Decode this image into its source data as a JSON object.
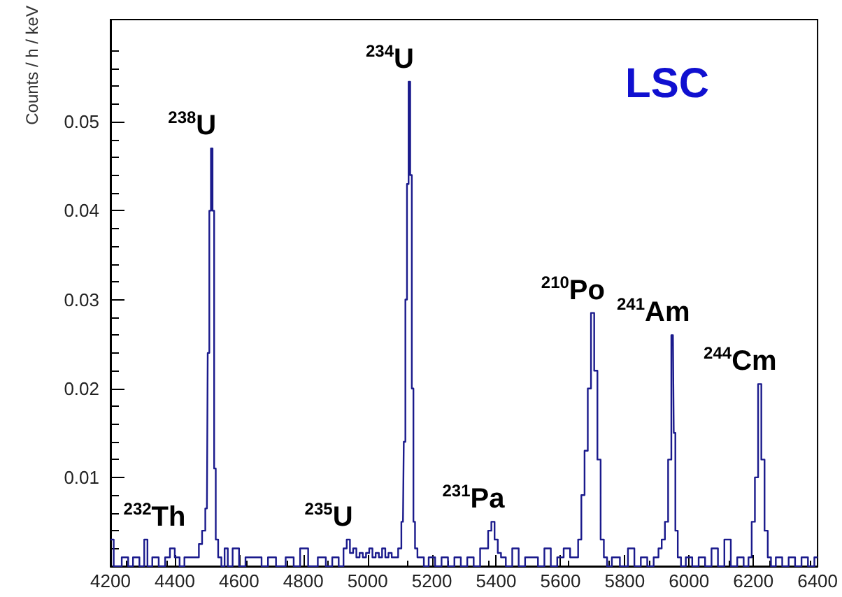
{
  "chart_data": {
    "type": "step",
    "ylabel": "Counts / h / keV",
    "x": [
      4200,
      4220,
      4250,
      4260,
      4280,
      4300,
      4310,
      4320,
      4340,
      4360,
      4380,
      4390,
      4410,
      4420,
      4440,
      4460,
      4470,
      4480,
      4490,
      4500,
      4505,
      4510,
      4515,
      4520,
      4525,
      4530,
      4540,
      4550,
      4560,
      4570,
      4590,
      4610,
      4630,
      4660,
      4680,
      4700,
      4730,
      4760,
      4780,
      4800,
      4830,
      4860,
      4880,
      4900,
      4920,
      4930,
      4940,
      4950,
      4960,
      4970,
      4980,
      4990,
      5000,
      5010,
      5020,
      5030,
      5040,
      5050,
      5060,
      5070,
      5080,
      5090,
      5100,
      5110,
      5115,
      5120,
      5125,
      5130,
      5135,
      5140,
      5145,
      5150,
      5160,
      5170,
      5180,
      5200,
      5220,
      5240,
      5260,
      5280,
      5300,
      5320,
      5340,
      5360,
      5370,
      5380,
      5390,
      5400,
      5410,
      5420,
      5440,
      5460,
      5480,
      5500,
      5520,
      5540,
      5560,
      5580,
      5600,
      5620,
      5640,
      5650,
      5660,
      5670,
      5680,
      5690,
      5700,
      5710,
      5720,
      5730,
      5740,
      5750,
      5770,
      5800,
      5820,
      5840,
      5860,
      5880,
      5900,
      5910,
      5920,
      5930,
      5940,
      5950,
      5955,
      5960,
      5970,
      5980,
      6000,
      6020,
      6040,
      6060,
      6080,
      6100,
      6120,
      6140,
      6160,
      6180,
      6190,
      6200,
      6210,
      6220,
      6230,
      6240,
      6250,
      6260,
      6280,
      6300,
      6320,
      6340,
      6360,
      6380,
      6400
    ],
    "series": [
      {
        "color": "#1a1a8c",
        "values": [
          0.003,
          0,
          0.001,
          0,
          0.001,
          0,
          0.003,
          0,
          0.001,
          0,
          0.001,
          0.002,
          0.001,
          0,
          0.001,
          0.001,
          0.001,
          0.0025,
          0.004,
          0.0065,
          0.024,
          0.04,
          0.047,
          0.04,
          0.011,
          0.003,
          0.001,
          0,
          0.002,
          0,
          0.002,
          0,
          0.001,
          0.001,
          0,
          0.001,
          0,
          0.001,
          0,
          0.002,
          0,
          0.001,
          0,
          0.001,
          0,
          0.002,
          0.003,
          0.0015,
          0.002,
          0.001,
          0.0015,
          0.001,
          0.0015,
          0.002,
          0.001,
          0.0015,
          0.001,
          0.002,
          0.001,
          0.0015,
          0.001,
          0.001,
          0.002,
          0.005,
          0.014,
          0.03,
          0.043,
          0.0545,
          0.044,
          0.02,
          0.005,
          0.002,
          0.001,
          0.001,
          0,
          0.001,
          0,
          0.001,
          0,
          0.001,
          0,
          0.001,
          0,
          0.002,
          0.002,
          0.004,
          0.005,
          0.003,
          0.0015,
          0.001,
          0,
          0.002,
          0,
          0.001,
          0.001,
          0,
          0.002,
          0,
          0.001,
          0.002,
          0.001,
          0.001,
          0.003,
          0.008,
          0.013,
          0.02,
          0.0285,
          0.022,
          0.012,
          0.003,
          0.001,
          0,
          0.001,
          0,
          0.002,
          0,
          0.001,
          0,
          0.001,
          0.002,
          0.003,
          0.005,
          0.012,
          0.026,
          0.015,
          0.004,
          0.001,
          0,
          0.001,
          0,
          0.001,
          0,
          0.002,
          0,
          0.003,
          0,
          0.001,
          0,
          0.001,
          0.005,
          0.01,
          0.0205,
          0.012,
          0.004,
          0.001,
          0,
          0.001,
          0,
          0.001,
          0,
          0.001,
          0,
          0.001
        ]
      }
    ],
    "xlim": [
      4200,
      6400
    ],
    "xticks": [
      4200,
      4400,
      4600,
      4800,
      5000,
      5200,
      5400,
      5600,
      5800,
      6000,
      6200,
      6400
    ],
    "ylim": [
      0,
      0.0615
    ],
    "yticks": [
      {
        "value": 0,
        "label": null
      },
      0.01,
      0.02,
      0.03,
      0.04,
      0.05
    ],
    "grid": false,
    "marker": "none",
    "line_style": "solid",
    "annotations": [
      "LSC",
      {
        "text": "$^{232}$Th",
        "x": 4310,
        "y": 0.003
      },
      {
        "text": "$^{238}$U",
        "x": 4515,
        "y": 0.047
      },
      {
        "text": "$^{235}$U",
        "x": 4940,
        "y": 0.003
      },
      {
        "text": "$^{234}$U",
        "x": 5130,
        "y": 0.0545
      },
      {
        "text": "$^{231}$Pa",
        "x": 5390,
        "y": 0.005
      },
      {
        "text": "$^{210}$Po",
        "x": 5700,
        "y": 0.0285
      },
      {
        "text": "$^{241}$Am",
        "x": 5950,
        "y": 0.026
      },
      {
        "text": "$^{244}$Cm",
        "x": 6220,
        "y": 0.0205
      }
    ]
  }
}
